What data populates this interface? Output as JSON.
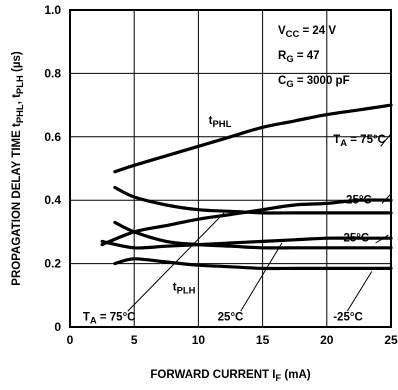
{
  "chart_data": {
    "type": "line",
    "xlabel": "FORWARD CURRENT I_F (mA)",
    "ylabel": "PROPAGATION DELAY TIME t_PHL, t_PLH (µs)",
    "xlim": [
      0,
      25
    ],
    "ylim": [
      0,
      1.0
    ],
    "x_ticks": [
      "0",
      "5",
      "10",
      "15",
      "20",
      "25"
    ],
    "y_ticks": [
      "0",
      "0.2",
      "0.4",
      "0.6",
      "0.8",
      "1.0"
    ],
    "grid": true,
    "conditions": [
      "V_CC = 24 V",
      "R_G = 47",
      "C_G = 3000 pF"
    ],
    "series": [
      {
        "name": "t_PHL, T_A = 75°C",
        "x": [
          3.5,
          5,
          7.5,
          10,
          12.5,
          15,
          17.5,
          20,
          22.5,
          25
        ],
        "y": [
          0.49,
          0.51,
          0.54,
          0.57,
          0.6,
          0.63,
          0.65,
          0.67,
          0.685,
          0.7
        ]
      },
      {
        "name": "t_PHL, T_A = 25°C",
        "x": [
          3.5,
          5,
          7.5,
          10,
          12.5,
          15,
          17.5,
          20,
          22.5,
          25
        ],
        "y": [
          0.44,
          0.41,
          0.385,
          0.37,
          0.365,
          0.36,
          0.36,
          0.36,
          0.36,
          0.36
        ]
      },
      {
        "name": "t_PHL, T_A = -25°C",
        "x": [
          3.5,
          5,
          7.5,
          10,
          12.5,
          15,
          17.5,
          20,
          22.5,
          25
        ],
        "y": [
          0.33,
          0.3,
          0.27,
          0.26,
          0.255,
          0.25,
          0.25,
          0.25,
          0.25,
          0.25
        ]
      },
      {
        "name": "t_PLH, T_A = 75°C",
        "x": [
          2.5,
          5,
          7.5,
          10,
          12.5,
          15,
          17.5,
          20,
          22.5,
          25
        ],
        "y": [
          0.26,
          0.3,
          0.32,
          0.34,
          0.355,
          0.37,
          0.385,
          0.39,
          0.4,
          0.4
        ]
      },
      {
        "name": "t_PLH, T_A = 25°C",
        "x": [
          2.5,
          5,
          7.5,
          10,
          12.5,
          15,
          17.5,
          20,
          22.5,
          25
        ],
        "y": [
          0.27,
          0.25,
          0.255,
          0.26,
          0.265,
          0.27,
          0.275,
          0.28,
          0.28,
          0.28
        ]
      },
      {
        "name": "t_PLH, T_A = -25°C",
        "x": [
          3.5,
          5,
          7.5,
          10,
          12.5,
          15,
          17.5,
          20,
          22.5,
          25
        ],
        "y": [
          0.2,
          0.215,
          0.205,
          0.195,
          0.19,
          0.185,
          0.185,
          0.185,
          0.185,
          0.185
        ]
      }
    ],
    "annotations": [
      {
        "text": "t_PHL",
        "x": 10.8,
        "y": 0.64
      },
      {
        "text": "T_A = 75°C",
        "x": 20.5,
        "y": 0.58
      },
      {
        "text": "25°C",
        "x": 21.5,
        "y": 0.39
      },
      {
        "text": "-25°C",
        "x": 21.0,
        "y": 0.27
      },
      {
        "text": "t_PLH",
        "x": 8.0,
        "y": 0.115
      },
      {
        "text": "T_A = 75°C",
        "x": 1.0,
        "y": 0.02
      },
      {
        "text": "25°C",
        "x": 11.5,
        "y": 0.02
      },
      {
        "text": "-25°C",
        "x": 20.5,
        "y": 0.02
      }
    ]
  }
}
